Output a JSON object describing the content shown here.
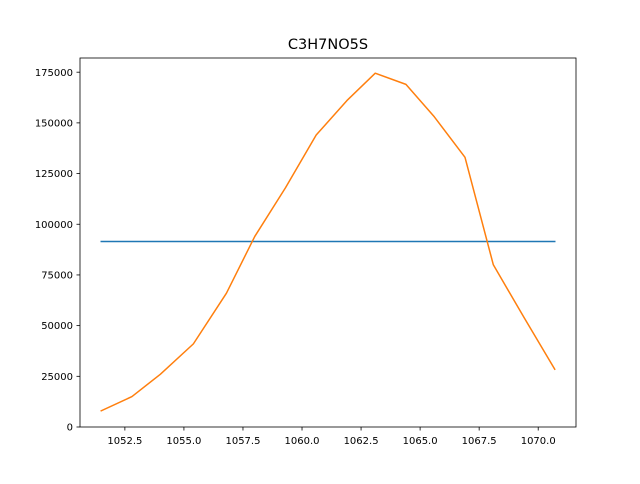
{
  "chart_data": {
    "type": "line",
    "title": "C3H7NO5S",
    "xlabel": "",
    "ylabel": "",
    "xlim": [
      1050.6,
      1071.6
    ],
    "ylim": [
      0,
      182000
    ],
    "x_ticks": [
      1052.5,
      1055.0,
      1057.5,
      1060.0,
      1062.5,
      1065.0,
      1067.5,
      1070.0
    ],
    "x_tick_labels": [
      "1052.5",
      "1055.0",
      "1057.5",
      "1060.0",
      "1062.5",
      "1065.0",
      "1067.5",
      "1070.0"
    ],
    "y_ticks": [
      0,
      25000,
      50000,
      75000,
      100000,
      125000,
      150000,
      175000
    ],
    "y_tick_labels": [
      "0",
      "25000",
      "50000",
      "75000",
      "100000",
      "125000",
      "150000",
      "175000"
    ],
    "grid": false,
    "series": [
      {
        "color": "#1f77b4",
        "x": [
          1051.5,
          1070.7
        ],
        "y": [
          91500,
          91500
        ]
      },
      {
        "color": "#ff7f0e",
        "x": [
          1051.5,
          1052.8,
          1054.0,
          1055.4,
          1056.8,
          1058.0,
          1059.3,
          1060.6,
          1061.9,
          1063.1,
          1064.4,
          1065.6,
          1066.9,
          1068.1,
          1069.4,
          1070.7
        ],
        "y": [
          8000,
          15000,
          26000,
          41000,
          66000,
          94000,
          118000,
          144000,
          161000,
          174500,
          169000,
          153000,
          133000,
          80000,
          54000,
          28500
        ]
      }
    ]
  }
}
